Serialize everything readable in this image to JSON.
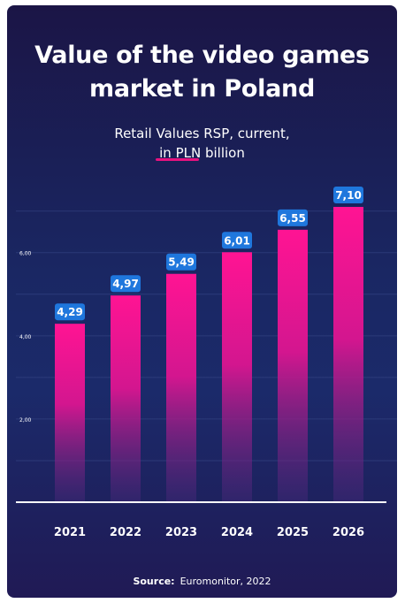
{
  "chart_data": {
    "type": "bar",
    "title": "Value of the video games market in Poland",
    "subtitle_line1": "Retail Values RSP, current,",
    "subtitle_line2": "in PLN billion",
    "categories": [
      "2021",
      "2022",
      "2023",
      "2024",
      "2025",
      "2026"
    ],
    "values": [
      4.29,
      4.97,
      5.49,
      6.01,
      6.55,
      7.1
    ],
    "value_labels": [
      "4,29",
      "4,97",
      "5,49",
      "6,01",
      "6,55",
      "7,10"
    ],
    "y_ticks": [
      2,
      4,
      6
    ],
    "y_tick_labels": [
      "2,00",
      "4,00",
      "6,00"
    ],
    "ylim": [
      0,
      7.1
    ],
    "grid": true,
    "xlabel": "",
    "ylabel": ""
  },
  "source": {
    "label": "Source:",
    "text": "Euromonitor, 2022"
  },
  "colors": {
    "bar_top": "#ff1493",
    "bar_bottom": "#4a2a7d",
    "label_bg": "#1f77dd",
    "grid": "#3a4a8a"
  }
}
